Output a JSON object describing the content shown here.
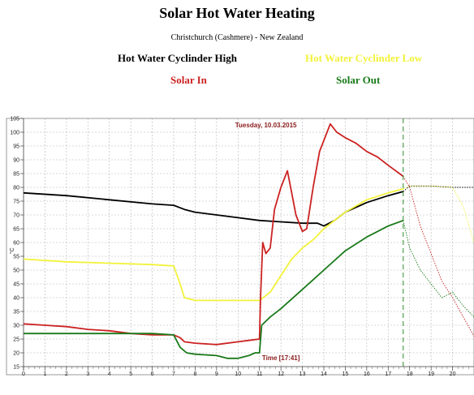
{
  "header": {
    "title": "Solar Hot Water Heating",
    "subtitle": "Christchurch (Cashmere) - New Zealand"
  },
  "legend": [
    {
      "label": "Hot Water Cyclinder High",
      "color": "#000000"
    },
    {
      "label": "Hot Water Cyclinder Low",
      "color": "#f2f23a"
    },
    {
      "label": "Solar In",
      "color": "#cc2222"
    },
    {
      "label": "Solar Out",
      "color": "#1a7a1a"
    }
  ],
  "chart_data": {
    "type": "line",
    "title": "Solar Hot Water Heating",
    "date_label": "Tuesday, 10.03.2015",
    "time_label": "Time [17:41]",
    "current_time": 17.7,
    "ylabel": "°C",
    "xlim": [
      0,
      21
    ],
    "ylim": [
      15,
      105
    ],
    "x_ticks": [
      0,
      1,
      2,
      3,
      4,
      5,
      6,
      7,
      8,
      9,
      10,
      11,
      12,
      13,
      14,
      15,
      16,
      17,
      18,
      19,
      20
    ],
    "y_ticks": [
      15,
      20,
      25,
      30,
      35,
      40,
      45,
      50,
      55,
      60,
      65,
      70,
      75,
      80,
      85,
      90,
      95,
      100,
      105
    ],
    "grid": true,
    "series": [
      {
        "name": "Hot Water Cyclinder High",
        "color": "#000000",
        "x": [
          0,
          2,
          4,
          6,
          7,
          7.5,
          8,
          9,
          10,
          11,
          12,
          13,
          13.7,
          14,
          14.5,
          15,
          16,
          17,
          17.7
        ],
        "y": [
          78,
          77,
          75.5,
          74,
          73.5,
          72,
          71,
          70,
          69,
          68,
          67.5,
          67,
          67,
          66,
          68,
          71,
          74.5,
          77,
          78.5
        ],
        "forecast": {
          "x": [
            17.7,
            18,
            19,
            20,
            21
          ],
          "y": [
            78.5,
            80.5,
            80.5,
            80,
            80
          ]
        }
      },
      {
        "name": "Hot Water Cyclinder Low",
        "color": "#f2f23a",
        "x": [
          0,
          2,
          4,
          6,
          7,
          7.3,
          7.5,
          8,
          9,
          10,
          11,
          11.5,
          12,
          12.5,
          13,
          13.5,
          14,
          15,
          16,
          17,
          17.7
        ],
        "y": [
          54,
          53,
          52.5,
          52,
          51.5,
          45,
          40,
          39,
          39,
          39,
          39,
          42,
          48,
          54,
          58,
          61,
          65,
          71,
          75.5,
          78,
          79.5
        ],
        "forecast": {
          "x": [
            17.7,
            18,
            19,
            20,
            20.5,
            21
          ],
          "y": [
            79.5,
            80.5,
            80.5,
            80,
            73,
            60
          ]
        }
      },
      {
        "name": "Solar In",
        "color": "#cc2222",
        "x": [
          0,
          1,
          2,
          3,
          4,
          5,
          6,
          7,
          7.3,
          7.5,
          8,
          9,
          10,
          10.5,
          11,
          11.05,
          11.15,
          11.3,
          11.5,
          11.7,
          12,
          12.3,
          12.5,
          12.7,
          13,
          13.2,
          13.5,
          13.8,
          14,
          14.3,
          14.6,
          15,
          15.5,
          16,
          16.5,
          17,
          17.7
        ],
        "y": [
          30.5,
          30,
          29.5,
          28.5,
          28,
          27,
          26.5,
          26.5,
          25.5,
          24,
          23.5,
          23,
          24,
          24.5,
          25,
          40,
          60,
          56,
          58,
          72,
          80,
          86,
          78,
          70,
          64,
          65,
          80,
          93,
          97,
          103,
          100,
          98,
          96,
          93,
          91,
          88,
          84
        ],
        "forecast": {
          "x": [
            17.7,
            18,
            18.5,
            19,
            19.5,
            20,
            20.5,
            21
          ],
          "y": [
            84,
            80,
            66,
            56,
            46,
            40,
            33,
            26
          ]
        }
      },
      {
        "name": "Solar Out",
        "color": "#1a7a1a",
        "x": [
          0,
          2,
          4,
          6,
          7,
          7.3,
          7.6,
          8,
          9,
          9.5,
          10,
          10.5,
          10.8,
          11,
          11.1,
          11.5,
          12,
          13,
          14,
          15,
          16,
          16.5,
          17,
          17.7
        ],
        "y": [
          27,
          27,
          27,
          27,
          26.5,
          22,
          20,
          19.5,
          19,
          18,
          18,
          19,
          20,
          20,
          30,
          33,
          36,
          43,
          50,
          57,
          62,
          64,
          66,
          68
        ],
        "forecast": {
          "x": [
            17.7,
            18,
            18.5,
            19,
            19.5,
            20,
            20.5,
            21
          ],
          "y": [
            68,
            58,
            50,
            45,
            40,
            42,
            37,
            33
          ]
        }
      }
    ]
  }
}
